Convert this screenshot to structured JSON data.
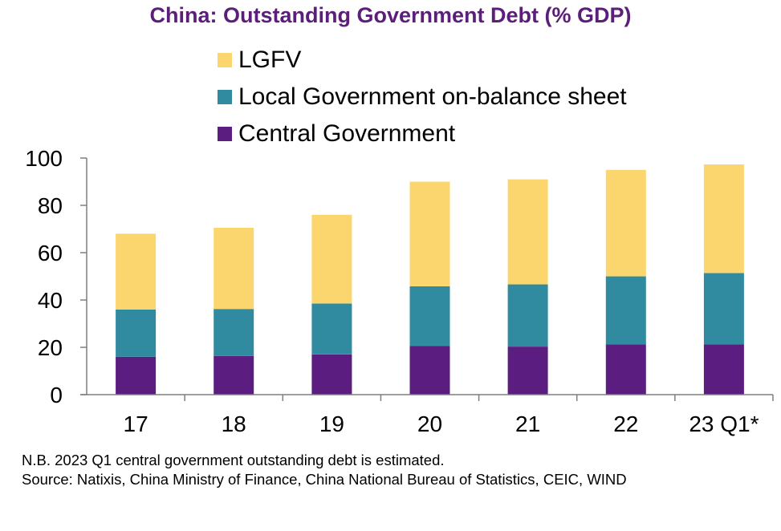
{
  "chart_data": {
    "type": "bar",
    "stacked": true,
    "title": "China: Outstanding Government Debt (% GDP)",
    "xlabel": "",
    "ylabel": "",
    "categories": [
      "17",
      "18",
      "19",
      "20",
      "21",
      "22",
      "23 Q1*"
    ],
    "ylim": [
      0,
      100
    ],
    "yticks": [
      0,
      20,
      40,
      60,
      80,
      100
    ],
    "grid": false,
    "legend_position": "top",
    "series": [
      {
        "name": "Central Government",
        "color": "#5b1e80",
        "values": [
          16,
          16.3,
          17,
          20.5,
          20.3,
          21.3,
          21.3
        ]
      },
      {
        "name": "Local Government on-balance sheet",
        "color": "#318ba0",
        "values": [
          20,
          19.9,
          21.5,
          25.3,
          26.3,
          28.7,
          30.1
        ]
      },
      {
        "name": "LGFV",
        "color": "#fbd66e",
        "values": [
          32,
          34.3,
          37.5,
          44.2,
          44.4,
          45,
          45.9
        ]
      }
    ],
    "legend_order": [
      "LGFV",
      "Local Government on-balance sheet",
      "Central Government"
    ]
  },
  "footnotes": [
    "N.B. 2023 Q1 central government outstanding debt is estimated.",
    "Source: Natixis, China Ministry of Finance, China National Bureau of Statistics, CEIC, WIND"
  ]
}
